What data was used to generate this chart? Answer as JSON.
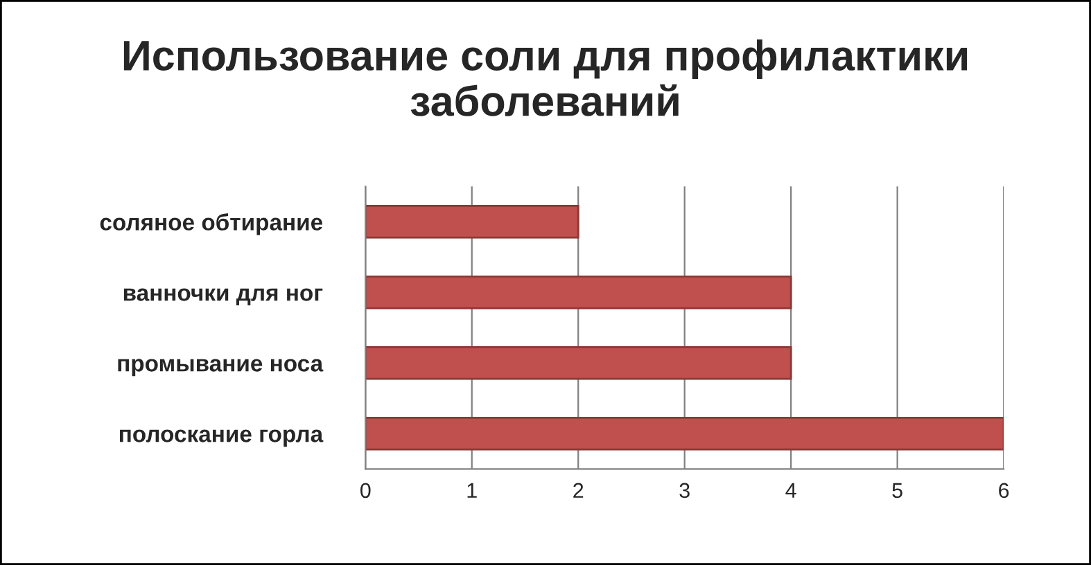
{
  "chart_data": {
    "type": "bar",
    "orientation": "horizontal",
    "title": "Использование соли для профилактики заболеваний",
    "categories": [
      "соляное обтирание",
      "ванночки для ног",
      "промывание носа",
      "полоскание горла"
    ],
    "values": [
      2,
      4,
      4,
      6
    ],
    "color": "#c0504d",
    "xlim": [
      0,
      6
    ],
    "xticks": [
      0,
      1,
      2,
      3,
      4,
      5,
      6
    ],
    "grid": "x",
    "legend": false
  }
}
